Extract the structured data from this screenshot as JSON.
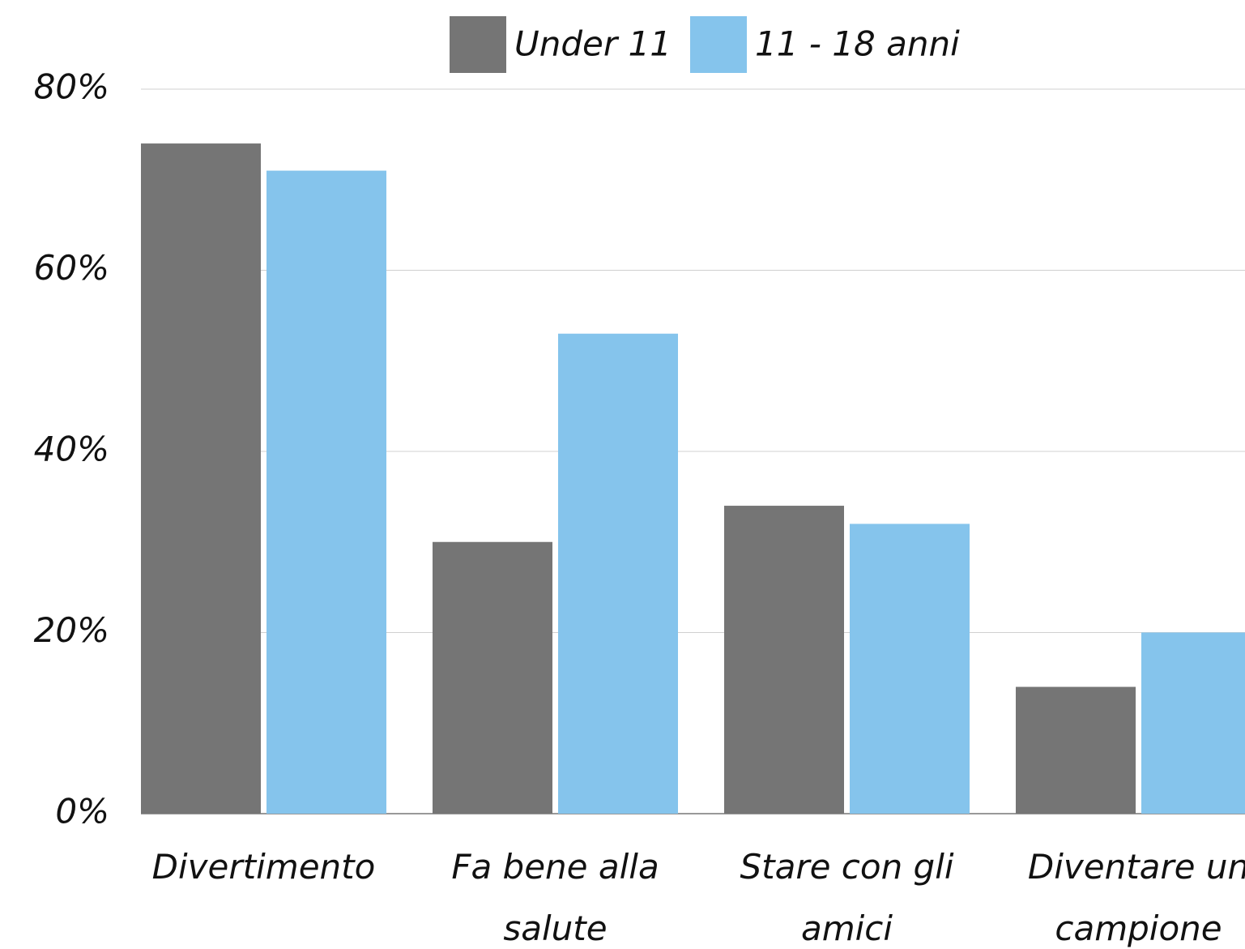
{
  "chart_data": {
    "type": "bar",
    "categories": [
      "Divertimento",
      "Fa bene alla salute",
      "Stare con gli amici",
      "Diventare un campione"
    ],
    "series": [
      {
        "name": "Under 11",
        "color": "#757575",
        "values": [
          74,
          30,
          34,
          14
        ]
      },
      {
        "name": "11 - 18 anni",
        "color": "#85c4ec",
        "values": [
          71,
          53,
          32,
          20
        ]
      }
    ],
    "ylim": [
      0,
      80
    ],
    "yticks": [
      {
        "value": 0,
        "label": "0%"
      },
      {
        "value": 20,
        "label": "20%"
      },
      {
        "value": 40,
        "label": "40%"
      },
      {
        "value": 60,
        "label": "60%"
      },
      {
        "value": 80,
        "label": "80%"
      }
    ],
    "grid": true,
    "legend": "top"
  }
}
